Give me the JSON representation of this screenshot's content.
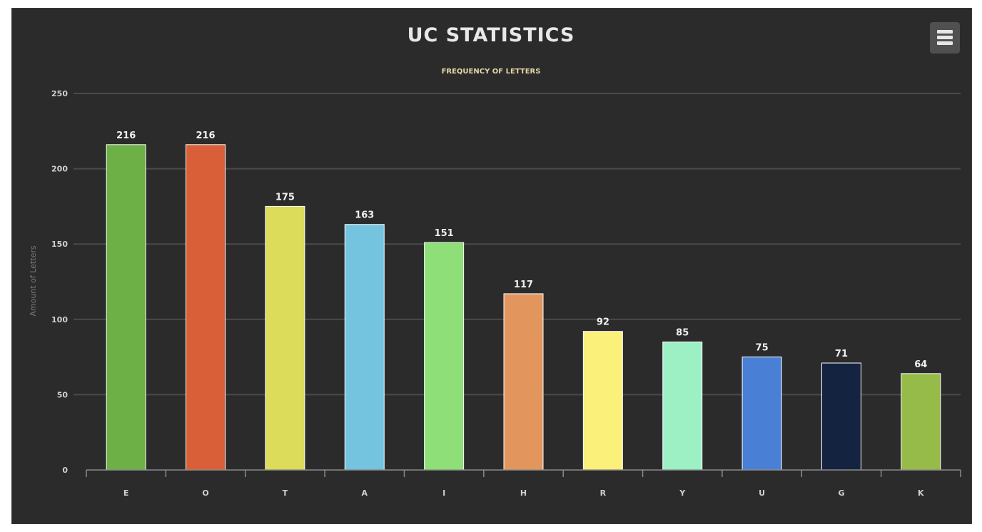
{
  "chart_data": {
    "type": "bar",
    "title": "UC STATISTICS",
    "subtitle": "FREQUENCY OF LETTERS",
    "xlabel": "",
    "ylabel": "Amount of Letters",
    "categories": [
      "E",
      "O",
      "T",
      "A",
      "I",
      "H",
      "R",
      "Y",
      "U",
      "G",
      "K"
    ],
    "values": [
      216,
      216,
      175,
      163,
      151,
      117,
      92,
      85,
      75,
      71,
      64
    ],
    "colors": [
      "#6db046",
      "#d95f38",
      "#dcdc5a",
      "#74c4df",
      "#8edf78",
      "#e2965e",
      "#fbf07a",
      "#9cf0c4",
      "#4a7fd6",
      "#142440",
      "#97bb48"
    ],
    "ylim": [
      0,
      250
    ],
    "yticks": [
      0,
      50,
      100,
      150,
      200,
      250
    ],
    "grid": true,
    "legend": "none",
    "data_labels": true
  },
  "colors": {
    "background": "#2b2b2b",
    "grid": "#4a4a4a",
    "title": "#e8e8e8",
    "subtitle": "#e6d9a8",
    "axis_text": "#cfcfcf",
    "ylabel": "#7a7a7a",
    "bar_border": "#ffffff"
  },
  "toolbar": {
    "menu_icon": "hamburger-menu-icon"
  }
}
